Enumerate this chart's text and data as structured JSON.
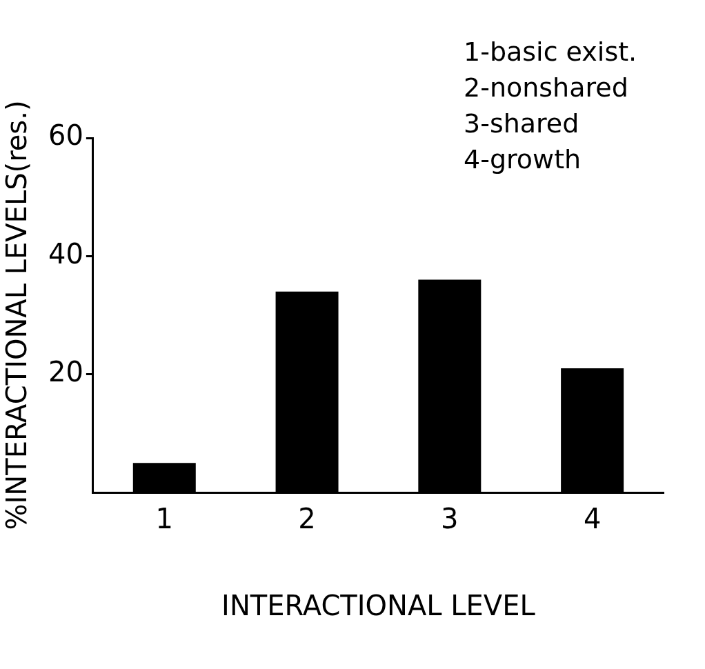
{
  "chart_data": {
    "type": "bar",
    "xlabel": "INTERACTIONAL LEVEL",
    "ylabel": "%INTERACTIONAL LEVELS(res.)",
    "categories": [
      "1",
      "2",
      "3",
      "4"
    ],
    "values": [
      5,
      34,
      36,
      21
    ],
    "color": "#000000",
    "ylim": [
      0,
      60
    ],
    "yticks": [
      20,
      40,
      60
    ],
    "grid": false,
    "annotations": [
      "1-basic exist.",
      "2-nonshared",
      "3-shared",
      "4-growth"
    ]
  }
}
